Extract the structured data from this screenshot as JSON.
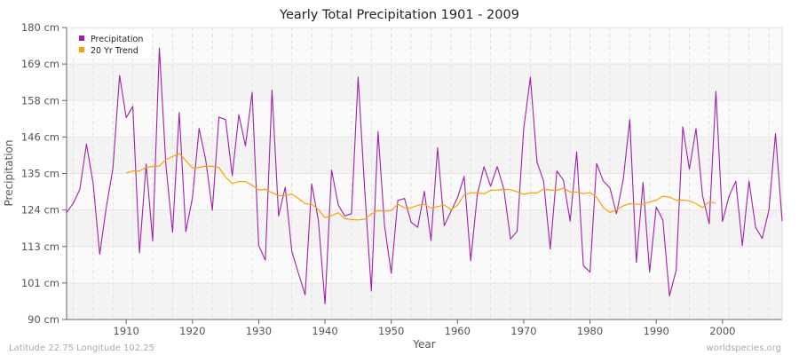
{
  "chart_data": {
    "type": "line",
    "title": "Yearly Total Precipitation 1901 - 2009",
    "xlabel": "Year",
    "ylabel": "Precipitation",
    "xlim": [
      1901,
      2009
    ],
    "ylim": [
      90,
      180
    ],
    "x_ticks": [
      "1910",
      "1920",
      "1930",
      "1940",
      "1950",
      "1960",
      "1970",
      "1980",
      "1990",
      "2000"
    ],
    "y_ticks": [
      "90 cm",
      "101 cm",
      "113 cm",
      "124 cm",
      "135 cm",
      "146 cm",
      "158 cm",
      "169 cm",
      "180 cm"
    ],
    "grid": true,
    "legend_position": "top-left",
    "series": [
      {
        "name": "Precipitation",
        "color": "#a020a8",
        "x_start": 1901,
        "values": [
          123.0,
          125.8,
          130.1,
          144.1,
          132.0,
          110.1,
          124.7,
          136.5,
          165.2,
          152.2,
          155.7,
          110.5,
          137.9,
          114.2,
          173.7,
          137.4,
          116.9,
          153.8,
          117.1,
          127.6,
          148.9,
          139.2,
          123.7,
          152.4,
          151.6,
          134.3,
          153.1,
          143.5,
          160.0,
          112.8,
          108.3,
          160.7,
          121.9,
          130.8,
          111.0,
          104.2,
          97.6,
          131.8,
          120.6,
          94.8,
          136.1,
          125.3,
          121.9,
          122.6,
          164.7,
          130.0,
          98.8,
          147.9,
          118.9,
          104.2,
          126.7,
          127.3,
          120.0,
          118.4,
          129.5,
          114.4,
          142.9,
          118.9,
          123.3,
          127.5,
          134.1,
          108.1,
          128.6,
          137.1,
          131.1,
          137.1,
          130.1,
          114.8,
          117.2,
          148.8,
          164.7,
          138.5,
          132.7,
          111.7,
          135.8,
          132.9,
          120.3,
          141.7,
          106.6,
          104.6,
          138.1,
          132.7,
          130.6,
          122.6,
          132.9,
          151.6,
          107.6,
          132.2,
          104.6,
          124.7,
          120.6,
          97.3,
          105.1,
          149.4,
          136.3,
          148.8,
          128.1,
          119.5,
          160.3,
          120.2,
          128.1,
          132.6,
          112.8,
          132.7,
          118.4,
          115.0,
          123.7,
          147.3,
          120.3
        ]
      },
      {
        "name": "20 Yr Trend",
        "color": "#ffa000",
        "x_start": 1910,
        "values": [
          135.1,
          135.8,
          135.8,
          136.9,
          137.2,
          137.3,
          139.3,
          140.2,
          141.2,
          139.0,
          136.7,
          136.9,
          137.3,
          137.2,
          136.9,
          133.9,
          131.9,
          132.5,
          132.5,
          131.4,
          129.9,
          130.1,
          129.1,
          128.2,
          128.2,
          128.7,
          127.3,
          125.7,
          125.5,
          123.9,
          121.4,
          122.0,
          122.9,
          121.1,
          120.8,
          120.7,
          120.9,
          122.5,
          123.6,
          123.4,
          123.6,
          125.5,
          124.4,
          124.4,
          125.2,
          125.5,
          124.3,
          124.8,
          125.3,
          123.9,
          125.2,
          128.4,
          129.0,
          129.1,
          128.7,
          129.8,
          129.9,
          130.1,
          130.0,
          129.4,
          128.6,
          129.0,
          129.0,
          130.1,
          129.9,
          129.8,
          130.5,
          129.3,
          129.3,
          128.8,
          129.1,
          127.7,
          124.5,
          123.0,
          123.8,
          125.0,
          125.7,
          125.5,
          125.5,
          126.2,
          126.8,
          128.0,
          127.7,
          126.8,
          126.8,
          126.6,
          125.7,
          124.5,
          126.3,
          125.8
        ]
      }
    ]
  },
  "footer": {
    "location": "Latitude 22.75 Longitude 102.25",
    "site": "worldspecies.org"
  }
}
